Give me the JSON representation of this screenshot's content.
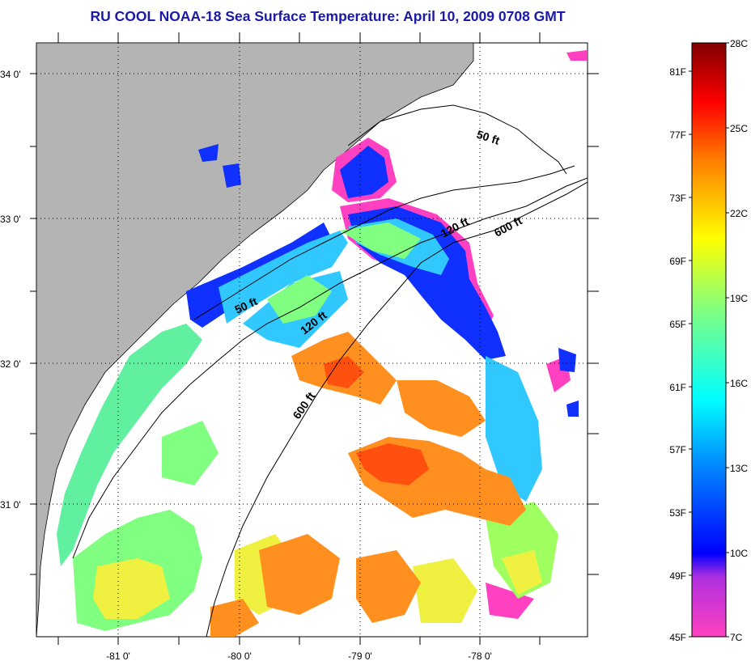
{
  "title": "RU COOL  NOAA-18  Sea Surface Temperature:  April 10, 2009 0708 GMT",
  "map": {
    "lat_labels": [
      "34 0'",
      "33 0'",
      "32 0'",
      "31 0'"
    ],
    "lon_labels": [
      "-81 0'",
      "-80 0'",
      "-79 0'",
      "-78 0'"
    ],
    "land_color": "#b4b4b4",
    "no_data_color": "#ffffff",
    "grid": "dotted",
    "contours": [
      {
        "label": "50 ft",
        "instances": 2
      },
      {
        "label": "120 ft",
        "instances": 2
      },
      {
        "label": "600 ft",
        "instances": 2
      }
    ],
    "contour_labels": {
      "a": "50 ft",
      "b": "50 ft",
      "c": "120 ft",
      "d": "120 ft",
      "e": "600 ft",
      "f": "600 ft"
    }
  },
  "colorbar": {
    "fahrenheit_labels": [
      "81F",
      "77F",
      "73F",
      "69F",
      "65F",
      "61F",
      "57F",
      "53F",
      "49F",
      "45F"
    ],
    "celsius_labels": [
      "28C",
      "25C",
      "22C",
      "19C",
      "16C",
      "13C",
      "10C",
      "7C"
    ],
    "colors": [
      "#ff40c0",
      "#0000ff",
      "#00ffff",
      "#80ff80",
      "#ffff00",
      "#ff8000",
      "#ff0000",
      "#800000"
    ]
  }
}
